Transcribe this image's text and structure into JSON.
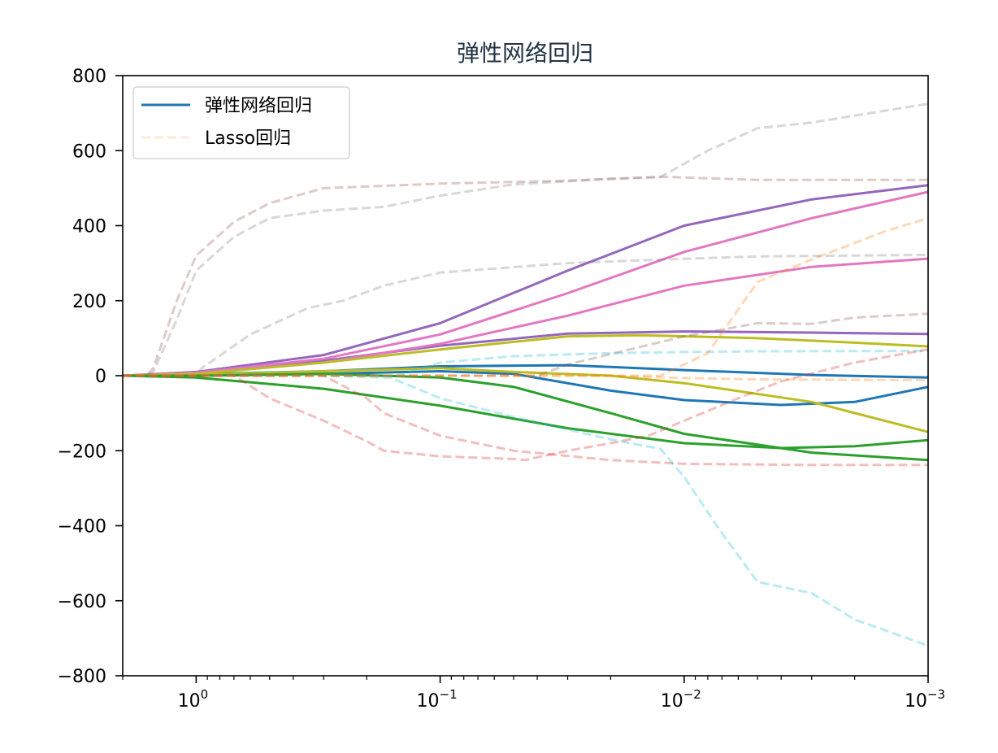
{
  "chart_data": {
    "type": "line",
    "title": "弹性网络回归",
    "xlabel": "",
    "ylabel": "",
    "xscale": "log",
    "xaxis_reversed": true,
    "xlim": [
      2.0,
      0.001
    ],
    "ylim": [
      -800,
      800
    ],
    "xticks": [
      {
        "value": 1,
        "base": "10",
        "exp": "0"
      },
      {
        "value": 0.1,
        "base": "10",
        "exp": "−1"
      },
      {
        "value": 0.01,
        "base": "10",
        "exp": "−2"
      },
      {
        "value": 0.001,
        "base": "10",
        "exp": "−3"
      }
    ],
    "yticks": [
      {
        "value": 800,
        "label": "800"
      },
      {
        "value": 600,
        "label": "600"
      },
      {
        "value": 400,
        "label": "400"
      },
      {
        "value": 200,
        "label": "200"
      },
      {
        "value": 0,
        "label": "0"
      },
      {
        "value": -200,
        "label": "−200"
      },
      {
        "value": -400,
        "label": "−400"
      },
      {
        "value": -600,
        "label": "−600"
      },
      {
        "value": -800,
        "label": "−800"
      }
    ],
    "grid": false,
    "legend": {
      "placement": "top-left",
      "entries": [
        {
          "label": "弹性网络回归",
          "color": "#1f77b4",
          "style": "solid"
        },
        {
          "label": "Lasso回归",
          "color": "#ffbb78",
          "style": "dashed"
        }
      ]
    },
    "series": [
      {
        "group": "elasticnet",
        "color": "#1f77b4",
        "style": "solid",
        "alpha": 1,
        "points": [
          [
            2,
            0
          ],
          [
            1,
            4
          ],
          [
            0.3,
            12
          ],
          [
            0.1,
            25
          ],
          [
            0.03,
            28
          ],
          [
            0.01,
            15
          ],
          [
            0.003,
            2
          ],
          [
            0.001,
            -5
          ]
        ]
      },
      {
        "group": "elasticnet",
        "color": "#1f77b4",
        "style": "solid",
        "alpha": 1,
        "points": [
          [
            2,
            0
          ],
          [
            1,
            0
          ],
          [
            0.3,
            5
          ],
          [
            0.1,
            12
          ],
          [
            0.05,
            5
          ],
          [
            0.02,
            -40
          ],
          [
            0.01,
            -65
          ],
          [
            0.004,
            -78
          ],
          [
            0.002,
            -70
          ],
          [
            0.001,
            -30
          ]
        ]
      },
      {
        "group": "elasticnet",
        "color": "#9467bd",
        "style": "solid",
        "alpha": 1,
        "points": [
          [
            2,
            0
          ],
          [
            1,
            10
          ],
          [
            0.3,
            55
          ],
          [
            0.1,
            140
          ],
          [
            0.03,
            280
          ],
          [
            0.01,
            400
          ],
          [
            0.003,
            470
          ],
          [
            0.001,
            508
          ]
        ]
      },
      {
        "group": "elasticnet",
        "color": "#9467bd",
        "style": "solid",
        "alpha": 1,
        "points": [
          [
            2,
            0
          ],
          [
            1,
            6
          ],
          [
            0.3,
            40
          ],
          [
            0.1,
            80
          ],
          [
            0.03,
            112
          ],
          [
            0.01,
            118
          ],
          [
            0.003,
            115
          ],
          [
            0.001,
            111
          ]
        ]
      },
      {
        "group": "elasticnet",
        "color": "#e377c2",
        "style": "solid",
        "alpha": 1,
        "points": [
          [
            2,
            0
          ],
          [
            1,
            8
          ],
          [
            0.3,
            45
          ],
          [
            0.1,
            110
          ],
          [
            0.03,
            220
          ],
          [
            0.01,
            330
          ],
          [
            0.003,
            420
          ],
          [
            0.001,
            490
          ]
        ]
      },
      {
        "group": "elasticnet",
        "color": "#e377c2",
        "style": "solid",
        "alpha": 1,
        "points": [
          [
            2,
            0
          ],
          [
            1,
            6
          ],
          [
            0.3,
            35
          ],
          [
            0.1,
            85
          ],
          [
            0.03,
            160
          ],
          [
            0.01,
            240
          ],
          [
            0.003,
            290
          ],
          [
            0.001,
            312
          ]
        ]
      },
      {
        "group": "elasticnet",
        "color": "#bcbd22",
        "style": "solid",
        "alpha": 1,
        "points": [
          [
            2,
            0
          ],
          [
            1,
            5
          ],
          [
            0.3,
            35
          ],
          [
            0.1,
            70
          ],
          [
            0.03,
            105
          ],
          [
            0.015,
            108
          ],
          [
            0.005,
            100
          ],
          [
            0.002,
            88
          ],
          [
            0.001,
            78
          ]
        ]
      },
      {
        "group": "elasticnet",
        "color": "#bcbd22",
        "style": "solid",
        "alpha": 1,
        "points": [
          [
            2,
            0
          ],
          [
            1,
            2
          ],
          [
            0.3,
            12
          ],
          [
            0.1,
            20
          ],
          [
            0.05,
            10
          ],
          [
            0.02,
            0
          ],
          [
            0.01,
            -20
          ],
          [
            0.003,
            -70
          ],
          [
            0.001,
            -150
          ]
        ]
      },
      {
        "group": "elasticnet",
        "color": "#2ca02c",
        "style": "solid",
        "alpha": 1,
        "points": [
          [
            2,
            0
          ],
          [
            1,
            -5
          ],
          [
            0.3,
            -35
          ],
          [
            0.1,
            -80
          ],
          [
            0.03,
            -140
          ],
          [
            0.01,
            -180
          ],
          [
            0.004,
            -193
          ],
          [
            0.002,
            -188
          ],
          [
            0.001,
            -172
          ]
        ]
      },
      {
        "group": "elasticnet",
        "color": "#2ca02c",
        "style": "solid",
        "alpha": 1,
        "points": [
          [
            2,
            0
          ],
          [
            1,
            0
          ],
          [
            0.3,
            5
          ],
          [
            0.1,
            -5
          ],
          [
            0.05,
            -30
          ],
          [
            0.02,
            -100
          ],
          [
            0.01,
            -155
          ],
          [
            0.003,
            -205
          ],
          [
            0.001,
            -225
          ]
        ]
      },
      {
        "group": "lasso",
        "color": "#8c564b",
        "style": "dashed",
        "alpha": 0.3,
        "points": [
          [
            2,
            0
          ],
          [
            1.6,
            0
          ],
          [
            1.5,
            20
          ],
          [
            1.2,
            200
          ],
          [
            1,
            320
          ],
          [
            0.7,
            410
          ],
          [
            0.5,
            460
          ],
          [
            0.3,
            500
          ],
          [
            0.1,
            512
          ],
          [
            0.03,
            520
          ],
          [
            0.012,
            530
          ],
          [
            0.005,
            522
          ],
          [
            0.001,
            522
          ]
        ]
      },
      {
        "group": "lasso",
        "color": "#7f7f7f",
        "style": "dashed",
        "alpha": 0.3,
        "points": [
          [
            2,
            0
          ],
          [
            1.6,
            0
          ],
          [
            1.5,
            10
          ],
          [
            1.2,
            150
          ],
          [
            1,
            280
          ],
          [
            0.7,
            370
          ],
          [
            0.5,
            420
          ],
          [
            0.3,
            440
          ],
          [
            0.17,
            450
          ],
          [
            0.1,
            480
          ],
          [
            0.05,
            510
          ],
          [
            0.02,
            525
          ],
          [
            0.0125,
            530
          ],
          [
            0.008,
            600
          ],
          [
            0.005,
            660
          ],
          [
            0.003,
            675
          ],
          [
            0.001,
            725
          ]
        ]
      },
      {
        "group": "lasso",
        "color": "#7f7f7f",
        "style": "dashed",
        "alpha": 0.3,
        "points": [
          [
            2,
            0
          ],
          [
            1,
            0
          ],
          [
            0.95,
            20
          ],
          [
            0.6,
            110
          ],
          [
            0.35,
            180
          ],
          [
            0.25,
            200
          ],
          [
            0.17,
            240
          ],
          [
            0.1,
            275
          ],
          [
            0.03,
            300
          ],
          [
            0.012,
            310
          ],
          [
            0.005,
            318
          ],
          [
            0.001,
            322
          ]
        ]
      },
      {
        "group": "lasso",
        "color": "#8c564b",
        "style": "dashed",
        "alpha": 0.3,
        "points": [
          [
            2,
            0
          ],
          [
            0.04,
            0
          ],
          [
            0.03,
            30
          ],
          [
            0.01,
            105
          ],
          [
            0.005,
            140
          ],
          [
            0.003,
            138
          ],
          [
            0.002,
            155
          ],
          [
            0.001,
            165
          ]
        ]
      },
      {
        "group": "lasso",
        "color": "#17becf",
        "style": "dashed",
        "alpha": 0.3,
        "points": [
          [
            2,
            0
          ],
          [
            0.15,
            0
          ],
          [
            0.1,
            35
          ],
          [
            0.05,
            52
          ],
          [
            0.02,
            60
          ],
          [
            0.01,
            63
          ],
          [
            0.005,
            65
          ],
          [
            0.001,
            66
          ]
        ]
      },
      {
        "group": "lasso",
        "color": "#17becf",
        "style": "dashed",
        "alpha": 0.3,
        "points": [
          [
            2,
            0
          ],
          [
            0.3,
            0
          ],
          [
            0.16,
            -5
          ],
          [
            0.1,
            -60
          ],
          [
            0.05,
            -110
          ],
          [
            0.02,
            -170
          ],
          [
            0.0125,
            -195
          ],
          [
            0.01,
            -270
          ],
          [
            0.007,
            -420
          ],
          [
            0.005,
            -550
          ],
          [
            0.003,
            -580
          ],
          [
            0.002,
            -650
          ],
          [
            0.001,
            -720
          ]
        ]
      },
      {
        "group": "lasso",
        "color": "#d62728",
        "style": "dashed",
        "alpha": 0.3,
        "points": [
          [
            2,
            0
          ],
          [
            0.7,
            0
          ],
          [
            0.5,
            -60
          ],
          [
            0.3,
            -120
          ],
          [
            0.2,
            -175
          ],
          [
            0.17,
            -200
          ],
          [
            0.1,
            -215
          ],
          [
            0.05,
            -222
          ],
          [
            0.045,
            -225
          ],
          [
            0.03,
            -200
          ],
          [
            0.02,
            -180
          ],
          [
            0.014,
            -160
          ],
          [
            0.01,
            -120
          ],
          [
            0.006,
            -60
          ],
          [
            0.004,
            -15
          ],
          [
            0.002,
            35
          ],
          [
            0.001,
            70
          ]
        ]
      },
      {
        "group": "lasso",
        "color": "#d62728",
        "style": "dashed",
        "alpha": 0.3,
        "points": [
          [
            2,
            0
          ],
          [
            0.3,
            0
          ],
          [
            0.2,
            -60
          ],
          [
            0.17,
            -100
          ],
          [
            0.1,
            -160
          ],
          [
            0.05,
            -200
          ],
          [
            0.02,
            -225
          ],
          [
            0.01,
            -235
          ],
          [
            0.003,
            -238
          ],
          [
            0.001,
            -238
          ]
        ]
      },
      {
        "group": "lasso",
        "color": "#ff7f0e",
        "style": "dashed",
        "alpha": 0.3,
        "points": [
          [
            2,
            0
          ],
          [
            0.0125,
            0
          ],
          [
            0.008,
            60
          ],
          [
            0.005,
            250
          ],
          [
            0.003,
            310
          ],
          [
            0.0015,
            385
          ],
          [
            0.001,
            420
          ]
        ]
      },
      {
        "group": "lasso",
        "color": "#ff7f0e",
        "style": "dashed",
        "alpha": 0.3,
        "points": [
          [
            2,
            0
          ],
          [
            0.02,
            0
          ],
          [
            0.012,
            -5
          ],
          [
            0.005,
            -10
          ],
          [
            0.001,
            -12
          ]
        ]
      }
    ]
  }
}
